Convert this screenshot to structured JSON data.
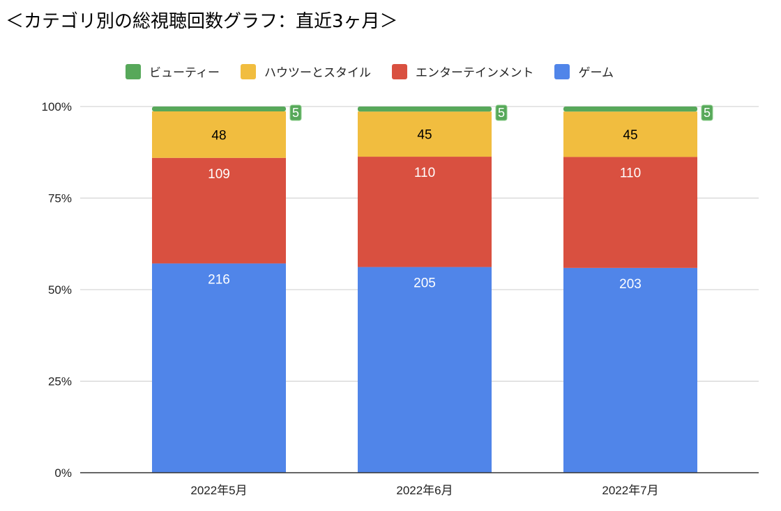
{
  "chart_data": {
    "type": "bar",
    "stacked": "percent",
    "title": "＜カテゴリ別の総視聴回数グラフ：直近3ヶ月＞",
    "categories": [
      "2022年5月",
      "2022年6月",
      "2022年7月"
    ],
    "series": [
      {
        "name": "ゲーム",
        "color": "#5085e9",
        "values": [
          216,
          205,
          203
        ]
      },
      {
        "name": "エンターテインメント",
        "color": "#d95040",
        "values": [
          109,
          110,
          110
        ]
      },
      {
        "name": "ハウツーとスタイル",
        "color": "#f1bd3f",
        "values": [
          48,
          45,
          45
        ]
      },
      {
        "name": "ビューティー",
        "color": "#57a85a",
        "values": [
          5,
          5,
          5
        ]
      }
    ],
    "legend_order": [
      "ビューティー",
      "ハウツーとスタイル",
      "エンターテインメント",
      "ゲーム"
    ],
    "yticks": [
      "0%",
      "25%",
      "50%",
      "75%",
      "100%"
    ],
    "ylim": [
      0,
      100
    ],
    "grid": true,
    "legend_position": "top"
  }
}
